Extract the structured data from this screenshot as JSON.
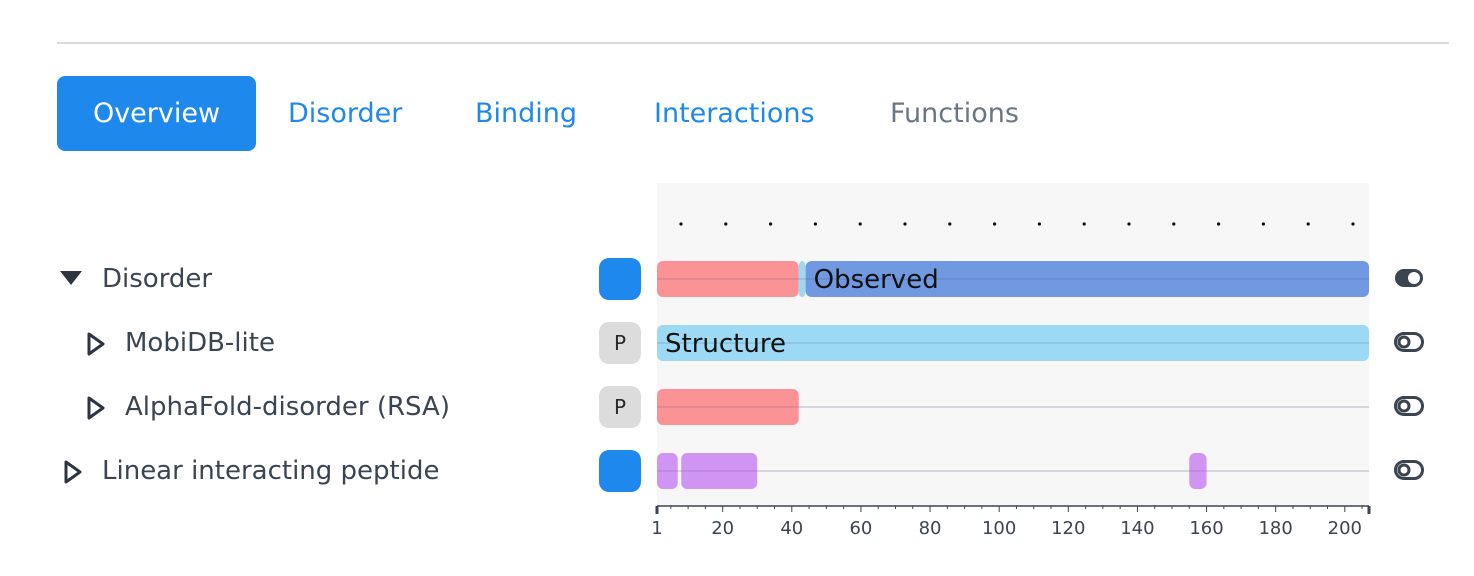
{
  "tabs": [
    {
      "label": "Overview",
      "state": "active"
    },
    {
      "label": "Disorder",
      "state": "link"
    },
    {
      "label": "Binding",
      "state": "link"
    },
    {
      "label": "Interactions",
      "state": "link"
    },
    {
      "label": "Functions",
      "state": "muted"
    }
  ],
  "rows": [
    {
      "label": "Disorder",
      "expanded": true,
      "badge": "",
      "toggle": "on"
    },
    {
      "label": "MobiDB-lite",
      "expanded": false,
      "badge": "P",
      "toggle": "off"
    },
    {
      "label": "AlphaFold-disorder (RSA)",
      "expanded": false,
      "badge": "P",
      "toggle": "off"
    },
    {
      "label": "Linear interacting peptide",
      "expanded": false,
      "badge": "",
      "toggle": "off"
    }
  ],
  "axis": {
    "ticks": [
      "1",
      "20",
      "40",
      "60",
      "80",
      "100",
      "120",
      "140",
      "160",
      "180",
      "200"
    ],
    "range": [
      1,
      207
    ]
  },
  "tracks": {
    "disorder": [
      {
        "start": 1,
        "end": 42,
        "color": "#fb9296",
        "label": ""
      },
      {
        "start": 42,
        "end": 44,
        "color": "#9fd8f3",
        "label": ""
      },
      {
        "start": 44,
        "end": 207,
        "color": "#7099e2",
        "label": "Observed"
      }
    ],
    "mobidb": [
      {
        "start": 1,
        "end": 207,
        "color": "#9bd9f4",
        "label": "Structure"
      }
    ],
    "alphafold": [
      {
        "start": 1,
        "end": 42,
        "color": "#fb9296",
        "label": ""
      }
    ],
    "lip": [
      {
        "start": 1,
        "end": 7,
        "color": "#d095f3",
        "label": ""
      },
      {
        "start": 8,
        "end": 30,
        "color": "#d095f3",
        "label": ""
      },
      {
        "start": 155,
        "end": 160,
        "color": "#d095f3",
        "label": ""
      }
    ]
  },
  "colors": {
    "accent": "#1e88ec",
    "muted_tab": "#6b7684",
    "track_bg": "#f7f7f7",
    "icon": "#3b4451"
  }
}
